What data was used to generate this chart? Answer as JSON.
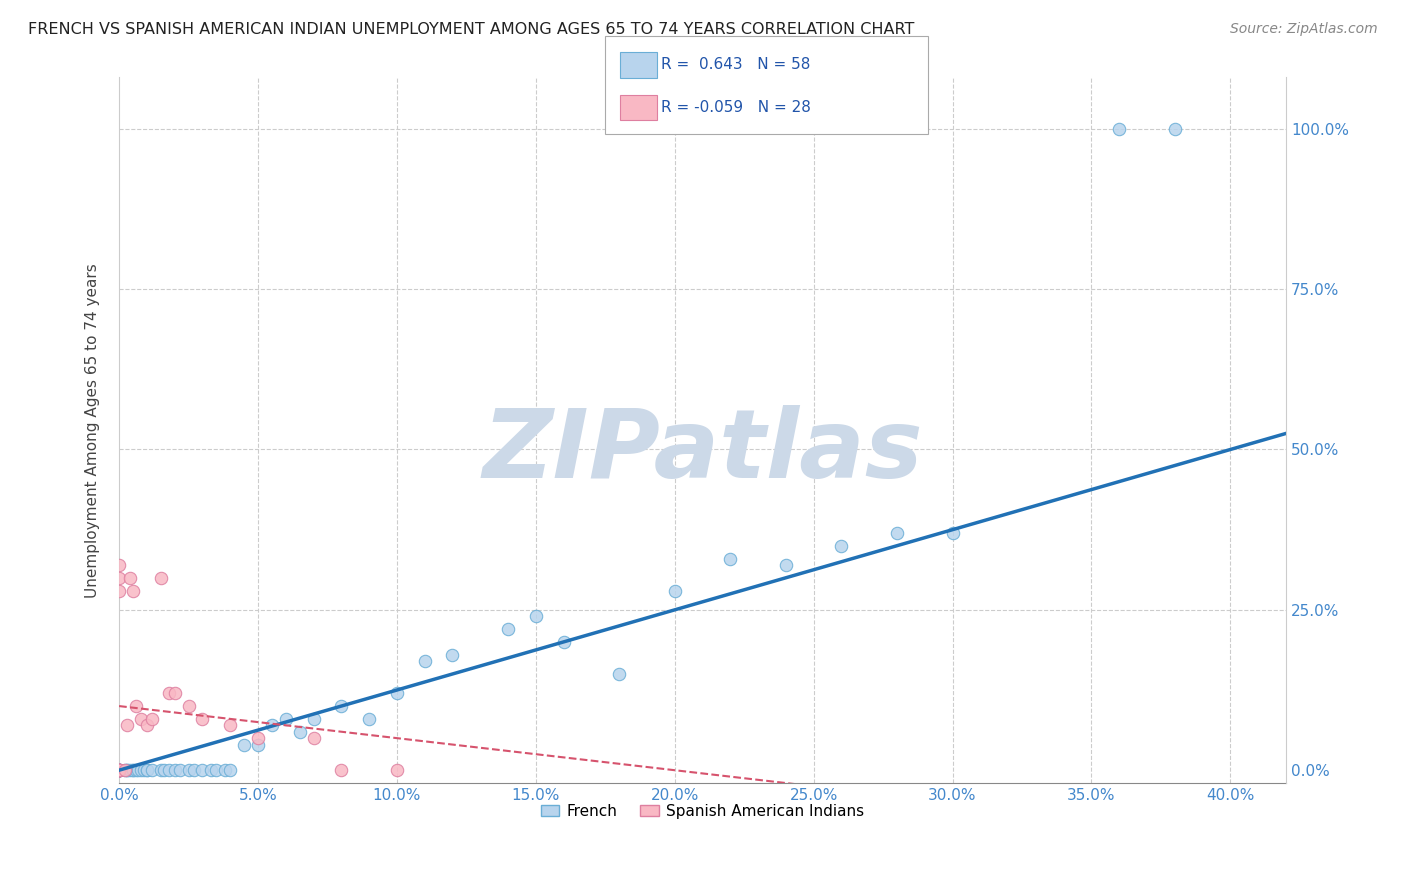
{
  "title": "FRENCH VS SPANISH AMERICAN INDIAN UNEMPLOYMENT AMONG AGES 65 TO 74 YEARS CORRELATION CHART",
  "source": "Source: ZipAtlas.com",
  "ylabel": "Unemployment Among Ages 65 to 74 years",
  "xlim": [
    0.0,
    0.42
  ],
  "ylim": [
    -0.02,
    1.08
  ],
  "xticks": [
    0.0,
    0.05,
    0.1,
    0.15,
    0.2,
    0.25,
    0.3,
    0.35,
    0.4
  ],
  "yticks": [
    0.0,
    0.25,
    0.5,
    0.75,
    1.0
  ],
  "xtick_labels": [
    "0.0%",
    "5.0%",
    "10.0%",
    "15.0%",
    "20.0%",
    "25.0%",
    "30.0%",
    "35.0%",
    "40.0%"
  ],
  "ytick_labels": [
    "0.0%",
    "25.0%",
    "50.0%",
    "75.0%",
    "100.0%"
  ],
  "french_R": 0.643,
  "french_N": 58,
  "spanish_R": -0.059,
  "spanish_N": 28,
  "french_color": "#b8d4ed",
  "french_edge_color": "#6aaed6",
  "french_line_color": "#2171b5",
  "spanish_color": "#f9b8c4",
  "spanish_edge_color": "#de7fa0",
  "spanish_line_color": "#d6536d",
  "watermark_text": "ZIPatlas",
  "watermark_color": "#ccd9e8",
  "tick_label_color": "#4488cc",
  "french_x": [
    0.0,
    0.0,
    0.0,
    0.0,
    0.0,
    0.0,
    0.0,
    0.0,
    0.0,
    0.0,
    0.002,
    0.003,
    0.003,
    0.004,
    0.005,
    0.005,
    0.006,
    0.007,
    0.008,
    0.009,
    0.01,
    0.01,
    0.012,
    0.015,
    0.016,
    0.018,
    0.02,
    0.022,
    0.025,
    0.027,
    0.03,
    0.033,
    0.035,
    0.038,
    0.04,
    0.045,
    0.05,
    0.055,
    0.06,
    0.065,
    0.07,
    0.08,
    0.09,
    0.1,
    0.11,
    0.12,
    0.14,
    0.15,
    0.16,
    0.18,
    0.2,
    0.22,
    0.24,
    0.26,
    0.28,
    0.3,
    0.36,
    0.38
  ],
  "french_y": [
    0.0,
    0.0,
    0.0,
    0.0,
    0.0,
    0.0,
    0.0,
    0.0,
    0.0,
    0.0,
    0.0,
    0.0,
    0.0,
    0.0,
    0.0,
    0.0,
    0.0,
    0.0,
    0.0,
    0.0,
    0.0,
    0.0,
    0.0,
    0.0,
    0.0,
    0.0,
    0.0,
    0.0,
    0.0,
    0.0,
    0.0,
    0.0,
    0.0,
    0.0,
    0.0,
    0.04,
    0.04,
    0.07,
    0.08,
    0.06,
    0.08,
    0.1,
    0.08,
    0.12,
    0.17,
    0.18,
    0.22,
    0.24,
    0.2,
    0.15,
    0.28,
    0.33,
    0.32,
    0.35,
    0.37,
    0.37,
    1.0,
    1.0
  ],
  "spanish_x": [
    0.0,
    0.0,
    0.0,
    0.0,
    0.0,
    0.0,
    0.0,
    0.0,
    0.0,
    0.0,
    0.002,
    0.003,
    0.004,
    0.005,
    0.006,
    0.008,
    0.01,
    0.012,
    0.015,
    0.018,
    0.02,
    0.025,
    0.03,
    0.04,
    0.05,
    0.07,
    0.08,
    0.1
  ],
  "spanish_y": [
    0.0,
    0.0,
    0.0,
    0.0,
    0.0,
    0.0,
    0.0,
    0.28,
    0.3,
    0.32,
    0.0,
    0.07,
    0.3,
    0.28,
    0.1,
    0.08,
    0.07,
    0.08,
    0.3,
    0.12,
    0.12,
    0.1,
    0.08,
    0.07,
    0.05,
    0.05,
    0.0,
    0.0
  ]
}
